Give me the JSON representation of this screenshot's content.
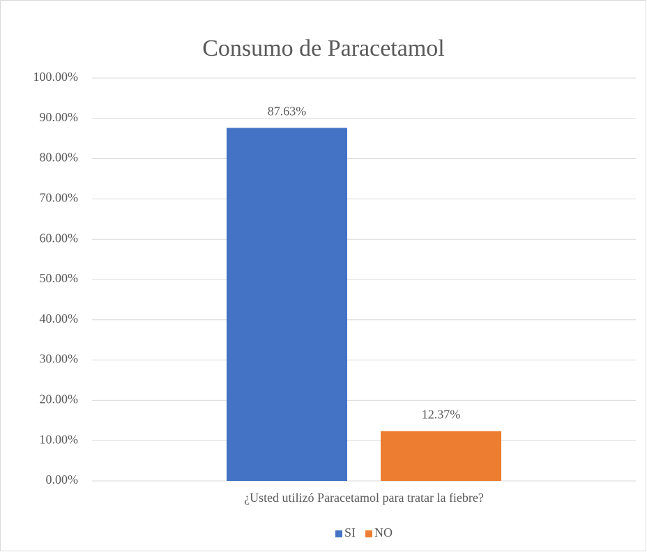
{
  "chart_data": {
    "type": "bar",
    "title": "Consumo de Paracetamol",
    "categories": [
      "¿Usted utilizó Paracetamol para tratar la fiebre?"
    ],
    "series": [
      {
        "name": "SI",
        "color": "#4472c4",
        "values": [
          87.63
        ],
        "value_labels": [
          "87.63%"
        ]
      },
      {
        "name": "NO",
        "color": "#ed7d31",
        "values": [
          12.37
        ],
        "value_labels": [
          "12.37%"
        ]
      }
    ],
    "ylim": [
      0,
      100
    ],
    "yticks": [
      {
        "value": 0,
        "label": "0.00%"
      },
      {
        "value": 10,
        "label": "10.00%"
      },
      {
        "value": 20,
        "label": "20.00%"
      },
      {
        "value": 30,
        "label": "30.00%"
      },
      {
        "value": 40,
        "label": "40.00%"
      },
      {
        "value": 50,
        "label": "50.00%"
      },
      {
        "value": 60,
        "label": "60.00%"
      },
      {
        "value": 70,
        "label": "70.00%"
      },
      {
        "value": 80,
        "label": "80.00%"
      },
      {
        "value": 90,
        "label": "90.00%"
      },
      {
        "value": 100,
        "label": "100.00%"
      }
    ],
    "grid": true,
    "legend": "bottom"
  }
}
